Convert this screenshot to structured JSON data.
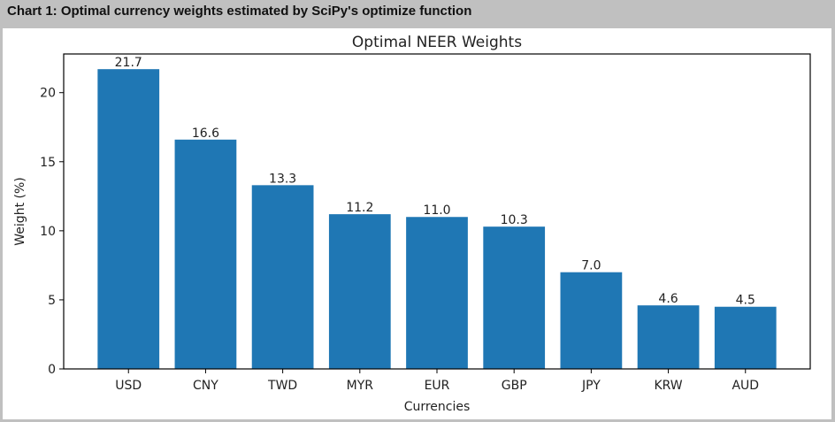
{
  "header": {
    "caption": "Chart 1: Optimal currency weights estimated by SciPy's optimize function"
  },
  "chart_data": {
    "type": "bar",
    "title": "Optimal NEER Weights",
    "xlabel": "Currencies",
    "ylabel": "Weight (%)",
    "categories": [
      "USD",
      "CNY",
      "TWD",
      "MYR",
      "EUR",
      "GBP",
      "JPY",
      "KRW",
      "AUD"
    ],
    "values": [
      21.7,
      16.6,
      13.3,
      11.2,
      11.0,
      10.3,
      7.0,
      4.6,
      4.5
    ],
    "data_labels": [
      "21.7",
      "16.6",
      "13.3",
      "11.2",
      "11.0",
      "10.3",
      "7.0",
      "4.6",
      "4.5"
    ],
    "ylim": [
      0,
      22.8
    ],
    "yticks": [
      0,
      5,
      10,
      15,
      20
    ],
    "grid": false,
    "bar_color": "#1f77b4"
  }
}
